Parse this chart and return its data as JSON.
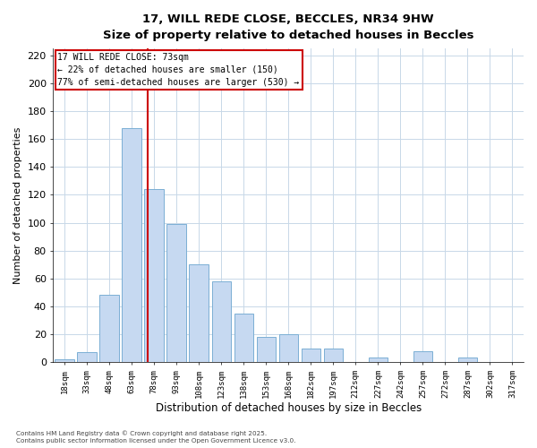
{
  "title": "17, WILL REDE CLOSE, BECCLES, NR34 9HW",
  "subtitle": "Size of property relative to detached houses in Beccles",
  "xlabel": "Distribution of detached houses by size in Beccles",
  "ylabel": "Number of detached properties",
  "bar_labels": [
    "18sqm",
    "33sqm",
    "48sqm",
    "63sqm",
    "78sqm",
    "93sqm",
    "108sqm",
    "123sqm",
    "138sqm",
    "153sqm",
    "168sqm",
    "182sqm",
    "197sqm",
    "212sqm",
    "227sqm",
    "242sqm",
    "257sqm",
    "272sqm",
    "287sqm",
    "302sqm",
    "317sqm"
  ],
  "bar_values": [
    2,
    7,
    48,
    168,
    124,
    99,
    70,
    58,
    35,
    18,
    20,
    10,
    10,
    0,
    3,
    0,
    8,
    0,
    3,
    0,
    0
  ],
  "bar_color": "#c6d9f1",
  "bar_edge_color": "#7bafd4",
  "ylim": [
    0,
    225
  ],
  "yticks": [
    0,
    20,
    40,
    60,
    80,
    100,
    120,
    140,
    160,
    180,
    200,
    220
  ],
  "vline_color": "#cc0000",
  "vline_bar_index": 3.72,
  "annotation_title": "17 WILL REDE CLOSE: 73sqm",
  "annotation_line1": "← 22% of detached houses are smaller (150)",
  "annotation_line2": "77% of semi-detached houses are larger (530) →",
  "annotation_box_color": "#cc0000",
  "footnote1": "Contains HM Land Registry data © Crown copyright and database right 2025.",
  "footnote2": "Contains public sector information licensed under the Open Government Licence v3.0.",
  "bg_color": "#ffffff",
  "grid_color": "#c8d8e8"
}
